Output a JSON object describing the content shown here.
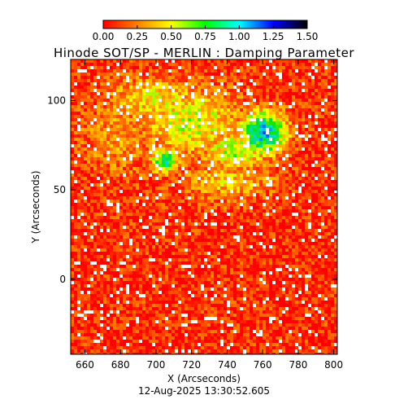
{
  "chart_data": {
    "type": "heatmap",
    "title": "Hinode SOT/SP - MERLIN : Damping Parameter",
    "xlabel": "X (Arcseconds)",
    "ylabel": "Y (Arcseconds)",
    "x_ticks": [
      660,
      680,
      700,
      720,
      740,
      760,
      780,
      800
    ],
    "y_ticks": [
      0,
      50,
      100
    ],
    "xlim": [
      652,
      802
    ],
    "ylim": [
      -42,
      123
    ],
    "colorbar": {
      "ticks": [
        "0.00",
        "0.25",
        "0.50",
        "0.75",
        "1.00",
        "1.25",
        "1.50"
      ],
      "range": [
        0,
        1.5
      ],
      "colors": [
        "#ff0000",
        "#ff8000",
        "#ffff00",
        "#00ff00",
        "#00ffff",
        "#0000ff",
        "#000000"
      ]
    },
    "regions": [
      {
        "x": 760,
        "y": 82,
        "rx": 14,
        "ry": 13,
        "value": 1.05
      },
      {
        "x": 705,
        "y": 66,
        "rx": 8,
        "ry": 7,
        "value": 0.9
      },
      {
        "x": 745,
        "y": 72,
        "rx": 20,
        "ry": 12,
        "value": 0.6
      },
      {
        "x": 720,
        "y": 88,
        "rx": 30,
        "ry": 20,
        "value": 0.55
      },
      {
        "x": 700,
        "y": 100,
        "rx": 30,
        "ry": 15,
        "value": 0.45
      },
      {
        "x": 740,
        "y": 55,
        "rx": 28,
        "ry": 12,
        "value": 0.4
      },
      {
        "x": 680,
        "y": 80,
        "rx": 25,
        "ry": 25,
        "value": 0.3
      }
    ],
    "background_value": 0.08
  },
  "timestamp": "12-Aug-2025 13:30:52.605"
}
